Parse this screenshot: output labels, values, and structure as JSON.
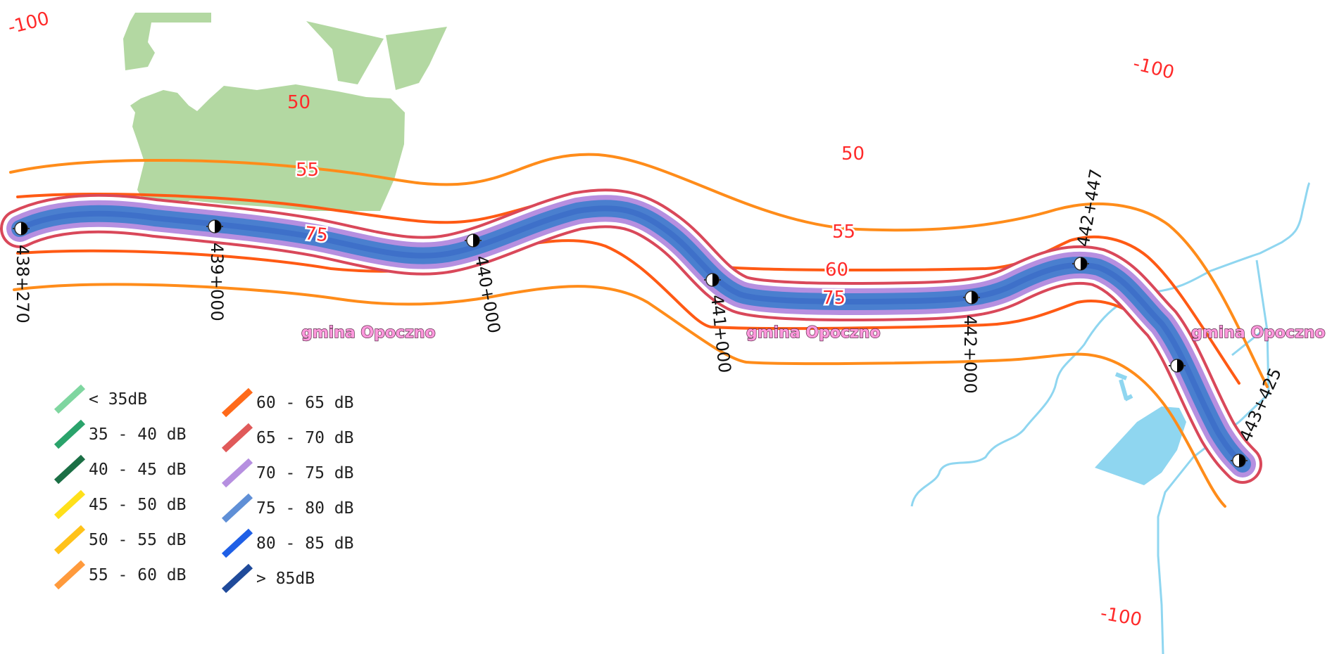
{
  "map": {
    "colors": {
      "green_area": "#b3d8a2",
      "water": "#8fd6f0",
      "band_orange": "#ff8c1a",
      "band_darkorange": "#ff5a14",
      "band_red": "#d9485a",
      "band_violet": "#b68fe0",
      "band_blue": "#4a7fcf",
      "road_core": "#3d6fc8"
    },
    "contour_labels": {
      "minus100_topleft": "-100",
      "minus100_topright": "-100",
      "minus100_bottomright": "-100",
      "l50_left": "50",
      "l55_left": "55",
      "l75_left": "75",
      "l50_right": "50",
      "l55_right": "55",
      "l60_right": "60",
      "l75_right": "75"
    },
    "km_markers": [
      "438+270",
      "439+000",
      "440+000",
      "441+000",
      "442+000",
      "442+447",
      "443+425"
    ],
    "marker_icon": "survey-marker-icon",
    "municipality_labels": [
      "gmina Opoczno",
      "gmina Opoczno",
      "gmina Opoczno"
    ]
  },
  "legend": {
    "items": [
      {
        "label": "< 35dB",
        "color": "#7fd6a0"
      },
      {
        "label": "35 - 40 dB",
        "color": "#2aa36b"
      },
      {
        "label": "40 - 45 dB",
        "color": "#1b6f45"
      },
      {
        "label": "45 - 50 dB",
        "color": "#ffe01a"
      },
      {
        "label": "50 - 55 dB",
        "color": "#ffc21a"
      },
      {
        "label": "55 - 60 dB",
        "color": "#ff9a3c"
      },
      {
        "label": "60 - 65 dB",
        "color": "#ff6a1a"
      },
      {
        "label": "65 - 70 dB",
        "color": "#e05a5a"
      },
      {
        "label": "70 - 75 dB",
        "color": "#b68fe0"
      },
      {
        "label": "75 - 80 dB",
        "color": "#5f8fd6"
      },
      {
        "label": "80 - 85 dB",
        "color": "#1f5fe6"
      },
      {
        "label": "> 85dB",
        "color": "#1f4a9a"
      }
    ]
  }
}
